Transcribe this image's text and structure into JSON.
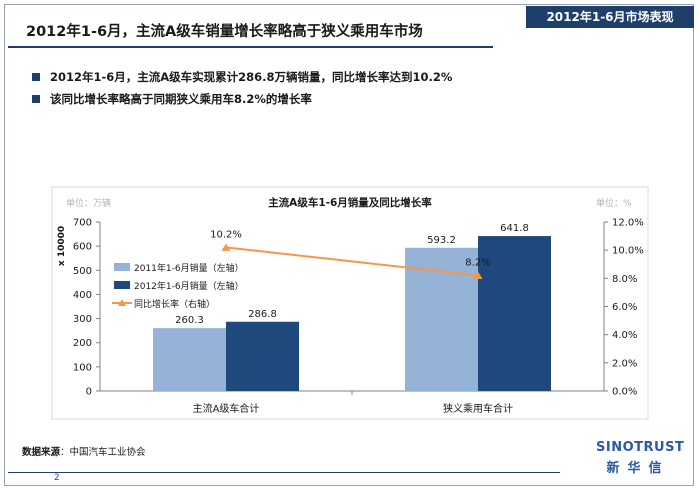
{
  "header": {
    "title": "2012年1-6月，主流A级车销量增长率略高于狭义乘用车市场",
    "section_tag": "2012年1-6月市场表现"
  },
  "bullets": [
    "2012年1-6月，主流A级车实现累计286.8万辆销量，同比增长率达到10.2%",
    "该同比增长率略高于同期狭义乘用车8.2%的增长率"
  ],
  "chart_data": {
    "type": "bar",
    "title": "主流A级车1-6月销量及同比增长率",
    "left_unit": "单位：万辆",
    "right_unit": "单位：%",
    "ylabel": "x 10000",
    "categories": [
      "主流A级车合计",
      "狭义乘用车合计"
    ],
    "series": [
      {
        "name": "2011年1-6月销量（左轴）",
        "type": "bar",
        "axis": "left",
        "values": [
          260.3,
          593.2
        ],
        "color": "#95b3d7"
      },
      {
        "name": "2012年1-6月销量（左轴）",
        "type": "bar",
        "axis": "left",
        "values": [
          286.8,
          641.8
        ],
        "color": "#1f497d"
      },
      {
        "name": "同比增长率（右轴）",
        "type": "line",
        "axis": "right",
        "values": [
          10.2,
          8.2
        ],
        "labels": [
          "10.2%",
          "8.2%"
        ],
        "color": "#f79646"
      }
    ],
    "ylim": [
      0,
      700
    ],
    "yticks": [
      "0",
      "100",
      "200",
      "300",
      "400",
      "500",
      "600",
      "700"
    ],
    "y2lim": [
      0,
      12
    ],
    "y2ticks": [
      "0.0%",
      "2.0%",
      "4.0%",
      "6.0%",
      "8.0%",
      "10.0%",
      "12.0%"
    ],
    "legend_position": "left"
  },
  "footer": {
    "source_label": "数据来源",
    "source_text": "：中国汽车工业协会",
    "page_number": "2",
    "logo_text": "SINOTRUST",
    "logo_sub": "新华信"
  }
}
